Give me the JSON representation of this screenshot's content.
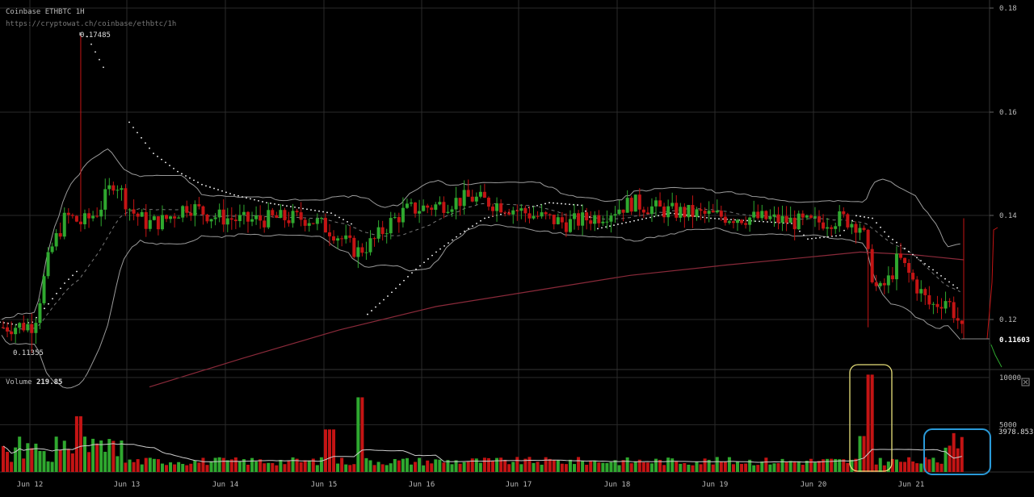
{
  "header": {
    "title": "Coinbase ETHBTC 1H",
    "url": "https://cryptowat.ch/coinbase/ethbtc/1h"
  },
  "volume_panel": {
    "label": "Volume",
    "current": "219.85",
    "close_icon": "close-icon"
  },
  "colors": {
    "background": "#000000",
    "up": "#2fa82f",
    "down": "#c41414",
    "grid": "#2a2a2a",
    "band": "#9a9a9a",
    "ma_long": "#8a2a3a",
    "dots": "#ffffff",
    "annotation_yellow": "#e8e07a",
    "annotation_blue": "#2a9ad8"
  },
  "chart_data": [
    {
      "type": "candlestick",
      "title": "Coinbase ETHBTC 1H",
      "x_tick_labels": [
        "Jun 12",
        "Jun 13",
        "Jun 14",
        "Jun 15",
        "Jun 16",
        "Jun 17",
        "Jun 18",
        "Jun 19",
        "Jun 20",
        "Jun 21"
      ],
      "y_tick_labels": [
        "0.18",
        "0.16",
        "0.14",
        "0.12"
      ],
      "ylim": [
        0.107,
        0.181
      ],
      "annotations": {
        "high_label": "0.17485",
        "low_label": "0.11355",
        "last_price": "0.11603"
      },
      "approx_close_path": [
        {
          "day": "Jun 11",
          "close": 0.1185
        },
        {
          "day": "Jun 12",
          "close": 0.141
        },
        {
          "day": "Jun 12 (peak)",
          "close": 0.1475
        },
        {
          "day": "Jun 13",
          "close": 0.14
        },
        {
          "day": "Jun 14",
          "close": 0.14
        },
        {
          "day": "Jun 15",
          "close": 0.134
        },
        {
          "day": "Jun 16",
          "close": 0.142
        },
        {
          "day": "Jun 17",
          "close": 0.1395
        },
        {
          "day": "Jun 18",
          "close": 0.141
        },
        {
          "day": "Jun 19",
          "close": 0.1395
        },
        {
          "day": "Jun 20",
          "close": 0.138
        },
        {
          "day": "Jun 20 (drop)",
          "close": 0.125
        },
        {
          "day": "Jun 21",
          "close": 0.122
        },
        {
          "day": "Jun 21 (last)",
          "close": 0.11603
        }
      ],
      "grid": true
    },
    {
      "type": "bar",
      "title": "Volume",
      "y_tick_labels": [
        "10000",
        "5000"
      ],
      "current_value_label": "3978.8530",
      "ylim": [
        0,
        10500
      ],
      "grid": true
    }
  ]
}
